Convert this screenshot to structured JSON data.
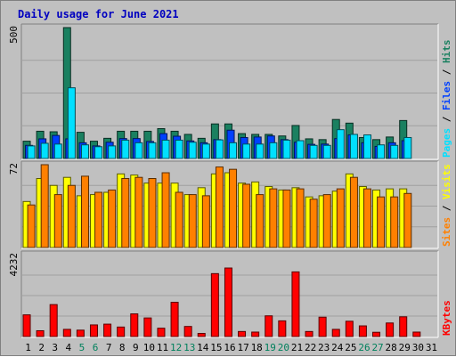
{
  "chart_data": {
    "type": "bar",
    "title": "Daily usage for June 2021",
    "x": [
      "1",
      "2",
      "3",
      "4",
      "5",
      "6",
      "7",
      "8",
      "9",
      "10",
      "11",
      "12",
      "13",
      "14",
      "15",
      "16",
      "17",
      "18",
      "19",
      "20",
      "21",
      "22",
      "23",
      "24",
      "25",
      "26",
      "27",
      "28",
      "29",
      "30",
      "31"
    ],
    "weekend_days": [
      "5",
      "6",
      "12",
      "13",
      "19",
      "20",
      "26",
      "27"
    ],
    "panels": [
      {
        "name": "hits-files-pages",
        "y_max_label": "500",
        "ylim": [
          0,
          500
        ],
        "labels": [
          "Pages",
          "Files",
          "Hits"
        ],
        "series": [
          {
            "name": "Hits",
            "color": "#1a8060",
            "values": [
              66,
              104,
              102,
              500,
              100,
              66,
              77,
              104,
              104,
              104,
              114,
              104,
              92,
              77,
              132,
              132,
              95,
              92,
              92,
              86,
              126,
              75,
              72,
              149,
              135,
              80,
              72,
              82,
              145,
              0,
              0
            ]
          },
          {
            "name": "Files",
            "color": "#0040ff",
            "values": [
              50,
              75,
              88,
              75,
              60,
              48,
              62,
              76,
              76,
              65,
              95,
              85,
              67,
              60,
              72,
              108,
              80,
              82,
              86,
              72,
              62,
              54,
              55,
              76,
              90,
              60,
              46,
              60,
              68,
              0,
              0
            ]
          },
          {
            "name": "Pages",
            "color": "#00e0ff",
            "values": [
              48,
              58,
              55,
              270,
              52,
              45,
              48,
              70,
              60,
              60,
              70,
              70,
              62,
              55,
              71,
              60,
              55,
              55,
              60,
              70,
              68,
              50,
              50,
              110,
              92,
              90,
              52,
              50,
              80,
              0,
              0
            ]
          }
        ]
      },
      {
        "name": "visits-sites",
        "y_max_label": "72",
        "ylim": [
          0,
          72
        ],
        "labels": [
          "Sites",
          "Visits"
        ],
        "series": [
          {
            "name": "Visits",
            "color": "#ffff00",
            "values": [
              40,
              60,
              54,
              61,
              45,
              46,
              48,
              64,
              63,
              56,
              56,
              56,
              46,
              52,
              64,
              65,
              56,
              57,
              53,
              50,
              52,
              44,
              45,
              49,
              64,
              53,
              50,
              51,
              51,
              0,
              0
            ]
          },
          {
            "name": "Sites",
            "color": "#ff8000",
            "values": [
              37,
              72,
              46,
              54,
              62,
              48,
              50,
              60,
              61,
              60,
              65,
              48,
              46,
              45,
              70,
              68,
              55,
              46,
              51,
              50,
              51,
              42,
              46,
              51,
              61,
              51,
              44,
              44,
              47,
              0,
              0
            ]
          }
        ]
      },
      {
        "name": "kbytes",
        "y_max_label": "4232",
        "ylim": [
          0,
          4232
        ],
        "labels": [
          "KBytes"
        ],
        "series": [
          {
            "name": "KBytes",
            "color": "#ff0000",
            "values": [
              1120,
              300,
              1650,
              370,
              330,
              600,
              640,
              490,
              1170,
              960,
              430,
              1770,
              520,
              160,
              3250,
              3540,
              260,
              230,
              1070,
              810,
              3340,
              260,
              1000,
              370,
              790,
              550,
              220,
              700,
              1020,
              230,
              0
            ]
          }
        ]
      }
    ]
  }
}
